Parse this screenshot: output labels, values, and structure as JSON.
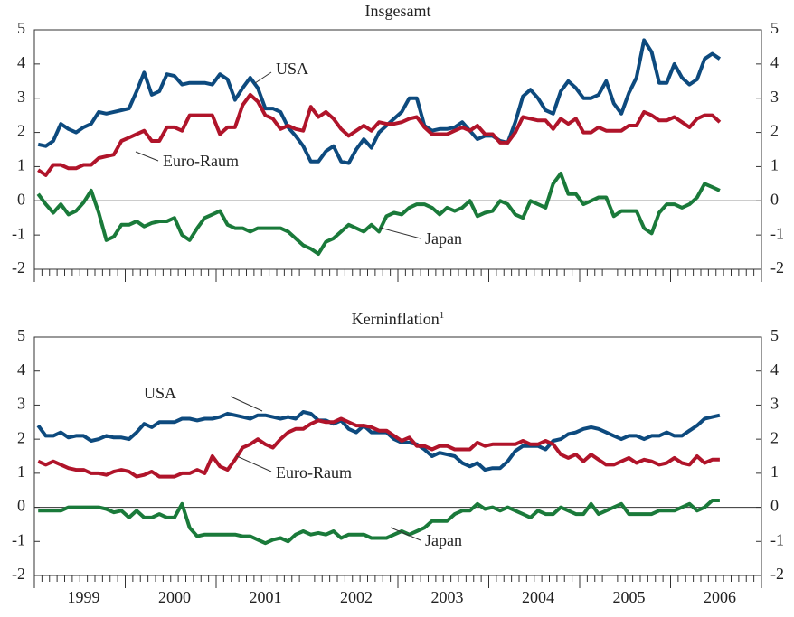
{
  "chart_data": [
    {
      "type": "line",
      "title": "Insgesamt",
      "categories": [
        null,
        null,
        null,
        null,
        null,
        null,
        "1999",
        null,
        null,
        null,
        null,
        null,
        null,
        null,
        null,
        null,
        null,
        null,
        "2000",
        null,
        null,
        null,
        null,
        null,
        null,
        null,
        null,
        null,
        null,
        null,
        "2001",
        null,
        null,
        null,
        null,
        null,
        null,
        null,
        null,
        null,
        null,
        null,
        "2002",
        null,
        null,
        null,
        null,
        null,
        null,
        null,
        null,
        null,
        null,
        null,
        "2003",
        null,
        null,
        null,
        null,
        null,
        null,
        null,
        null,
        null,
        null,
        null,
        "2004",
        null,
        null,
        null,
        null,
        null,
        null,
        null,
        null,
        null,
        null,
        null,
        "2005",
        null,
        null,
        null,
        null,
        null,
        null,
        null,
        null,
        null,
        null,
        null,
        "2006",
        null,
        null,
        null,
        null,
        null
      ],
      "ylim": [
        -2,
        5
      ],
      "yticks": [
        -2,
        -1,
        0,
        1,
        2,
        3,
        4,
        5
      ],
      "series": [
        {
          "name": "USA",
          "color": "#0d4a7e",
          "values": [
            1.65,
            1.6,
            1.75,
            2.25,
            2.1,
            2.0,
            2.15,
            2.25,
            2.6,
            2.55,
            2.6,
            2.65,
            2.7,
            3.2,
            3.75,
            3.1,
            3.2,
            3.7,
            3.65,
            3.4,
            3.45,
            3.45,
            3.45,
            3.4,
            3.7,
            3.55,
            2.95,
            3.3,
            3.6,
            3.3,
            2.7,
            2.7,
            2.6,
            2.15,
            1.9,
            1.6,
            1.15,
            1.15,
            1.45,
            1.6,
            1.15,
            1.1,
            1.5,
            1.8,
            1.55,
            2.0,
            2.2,
            2.4,
            2.6,
            3.0,
            3.0,
            2.2,
            2.05,
            2.1,
            2.1,
            2.15,
            2.3,
            2.05,
            1.8,
            1.9,
            1.9,
            1.75,
            1.7,
            2.3,
            3.05,
            3.25,
            3.0,
            2.65,
            2.55,
            3.2,
            3.5,
            3.3,
            3.0,
            3.0,
            3.1,
            3.5,
            2.85,
            2.55,
            3.15,
            3.6,
            4.7,
            4.35,
            3.45,
            3.45,
            4.0,
            3.6,
            3.4,
            3.55,
            4.15,
            4.3,
            4.15,
            null,
            null,
            null,
            null,
            null
          ]
        },
        {
          "name": "Euro-Raum",
          "color": "#b0142a",
          "values": [
            0.9,
            0.75,
            1.05,
            1.05,
            0.95,
            0.95,
            1.05,
            1.05,
            1.25,
            1.3,
            1.35,
            1.75,
            1.85,
            1.95,
            2.05,
            1.75,
            1.75,
            2.15,
            2.15,
            2.05,
            2.5,
            2.5,
            2.5,
            2.5,
            1.95,
            2.15,
            2.15,
            2.8,
            3.1,
            2.9,
            2.5,
            2.4,
            2.1,
            2.2,
            2.1,
            2.05,
            2.75,
            2.45,
            2.6,
            2.4,
            2.1,
            1.9,
            2.05,
            2.2,
            2.05,
            2.3,
            2.25,
            2.25,
            2.3,
            2.4,
            2.45,
            2.15,
            1.95,
            1.95,
            1.95,
            2.05,
            2.15,
            2.05,
            2.2,
            1.95,
            1.95,
            1.7,
            1.7,
            2.0,
            2.45,
            2.4,
            2.35,
            2.35,
            2.1,
            2.4,
            2.25,
            2.4,
            2.0,
            2.0,
            2.15,
            2.05,
            2.05,
            2.05,
            2.2,
            2.2,
            2.6,
            2.5,
            2.35,
            2.35,
            2.45,
            2.3,
            2.15,
            2.4,
            2.5,
            2.5,
            2.3,
            null,
            null,
            null,
            null,
            null
          ]
        },
        {
          "name": "Japan",
          "color": "#1a7a3a",
          "values": [
            0.2,
            -0.1,
            -0.35,
            -0.1,
            -0.4,
            -0.3,
            -0.05,
            0.3,
            -0.35,
            -1.15,
            -1.05,
            -0.7,
            -0.7,
            -0.6,
            -0.75,
            -0.65,
            -0.6,
            -0.6,
            -0.5,
            -1.0,
            -1.15,
            -0.8,
            -0.5,
            -0.4,
            -0.3,
            -0.7,
            -0.8,
            -0.8,
            -0.9,
            -0.8,
            -0.8,
            -0.8,
            -0.8,
            -0.9,
            -1.1,
            -1.3,
            -1.4,
            -1.55,
            -1.2,
            -1.1,
            -0.9,
            -0.7,
            -0.8,
            -0.9,
            -0.7,
            -0.9,
            -0.45,
            -0.35,
            -0.4,
            -0.2,
            -0.1,
            -0.1,
            -0.2,
            -0.4,
            -0.2,
            -0.3,
            -0.2,
            0.0,
            -0.45,
            -0.35,
            -0.3,
            0.0,
            -0.1,
            -0.4,
            -0.5,
            0.0,
            -0.1,
            -0.2,
            0.5,
            0.8,
            0.2,
            0.2,
            -0.1,
            0.0,
            0.1,
            0.1,
            -0.45,
            -0.3,
            -0.3,
            -0.3,
            -0.8,
            -0.95,
            -0.35,
            -0.1,
            -0.1,
            -0.2,
            -0.1,
            0.1,
            0.5,
            0.4,
            0.3,
            null,
            null,
            null,
            null,
            null
          ]
        }
      ]
    },
    {
      "type": "line",
      "title": "Kerninflation",
      "title_note": "1",
      "categories": [
        null,
        null,
        null,
        null,
        null,
        null,
        "1999",
        null,
        null,
        null,
        null,
        null,
        null,
        null,
        null,
        null,
        null,
        null,
        "2000",
        null,
        null,
        null,
        null,
        null,
        null,
        null,
        null,
        null,
        null,
        null,
        "2001",
        null,
        null,
        null,
        null,
        null,
        null,
        null,
        null,
        null,
        null,
        null,
        "2002",
        null,
        null,
        null,
        null,
        null,
        null,
        null,
        null,
        null,
        null,
        null,
        "2003",
        null,
        null,
        null,
        null,
        null,
        null,
        null,
        null,
        null,
        null,
        null,
        "2004",
        null,
        null,
        null,
        null,
        null,
        null,
        null,
        null,
        null,
        null,
        null,
        "2005",
        null,
        null,
        null,
        null,
        null,
        null,
        null,
        null,
        null,
        null,
        null,
        "2006",
        null,
        null,
        null,
        null,
        null
      ],
      "ylim": [
        -2,
        5
      ],
      "yticks": [
        -2,
        -1,
        0,
        1,
        2,
        3,
        4,
        5
      ],
      "series": [
        {
          "name": "USA",
          "color": "#0d4a7e",
          "values": [
            2.4,
            2.1,
            2.1,
            2.2,
            2.05,
            2.1,
            2.1,
            1.95,
            2.0,
            2.1,
            2.05,
            2.05,
            2.0,
            2.2,
            2.45,
            2.35,
            2.5,
            2.5,
            2.5,
            2.6,
            2.6,
            2.55,
            2.6,
            2.6,
            2.65,
            2.75,
            2.7,
            2.65,
            2.6,
            2.7,
            2.7,
            2.65,
            2.6,
            2.65,
            2.6,
            2.8,
            2.75,
            2.55,
            2.55,
            2.45,
            2.55,
            2.3,
            2.2,
            2.4,
            2.2,
            2.2,
            2.2,
            2.0,
            1.9,
            1.9,
            1.85,
            1.7,
            1.5,
            1.6,
            1.55,
            1.5,
            1.3,
            1.2,
            1.3,
            1.1,
            1.15,
            1.15,
            1.35,
            1.65,
            1.8,
            1.8,
            1.8,
            1.7,
            1.95,
            2.0,
            2.15,
            2.2,
            2.3,
            2.35,
            2.3,
            2.2,
            2.1,
            2.0,
            2.1,
            2.1,
            2.0,
            2.1,
            2.1,
            2.2,
            2.1,
            2.1,
            2.25,
            2.4,
            2.6,
            2.65,
            2.7,
            null,
            null,
            null,
            null,
            null
          ]
        },
        {
          "name": "Euro-Raum",
          "color": "#b0142a",
          "values": [
            1.35,
            1.25,
            1.35,
            1.25,
            1.15,
            1.1,
            1.1,
            1.0,
            1.0,
            0.95,
            1.05,
            1.1,
            1.05,
            0.9,
            0.95,
            1.05,
            0.9,
            0.9,
            0.9,
            1.0,
            1.0,
            1.1,
            1.0,
            1.5,
            1.2,
            1.1,
            1.4,
            1.75,
            1.85,
            2.0,
            1.85,
            1.75,
            2.0,
            2.2,
            2.3,
            2.3,
            2.45,
            2.55,
            2.5,
            2.5,
            2.6,
            2.5,
            2.4,
            2.4,
            2.35,
            2.25,
            2.25,
            2.1,
            1.95,
            2.05,
            1.8,
            1.8,
            1.7,
            1.8,
            1.8,
            1.7,
            1.7,
            1.7,
            1.9,
            1.8,
            1.85,
            1.85,
            1.85,
            1.85,
            1.95,
            1.85,
            1.85,
            1.95,
            1.85,
            1.55,
            1.45,
            1.55,
            1.35,
            1.55,
            1.4,
            1.25,
            1.25,
            1.35,
            1.45,
            1.3,
            1.4,
            1.35,
            1.25,
            1.3,
            1.45,
            1.3,
            1.25,
            1.5,
            1.3,
            1.4,
            1.4,
            null,
            null,
            null,
            null,
            null
          ]
        },
        {
          "name": "Japan",
          "color": "#1a7a3a",
          "values": [
            -0.1,
            -0.1,
            -0.1,
            -0.1,
            0.0,
            0.0,
            0.0,
            0.0,
            0.0,
            -0.05,
            -0.15,
            -0.1,
            -0.3,
            -0.1,
            -0.3,
            -0.3,
            -0.2,
            -0.3,
            -0.3,
            0.1,
            -0.6,
            -0.85,
            -0.8,
            -0.8,
            -0.8,
            -0.8,
            -0.8,
            -0.85,
            -0.85,
            -0.95,
            -1.05,
            -0.95,
            -0.9,
            -1.0,
            -0.8,
            -0.7,
            -0.8,
            -0.75,
            -0.8,
            -0.7,
            -0.9,
            -0.8,
            -0.8,
            -0.8,
            -0.9,
            -0.9,
            -0.9,
            -0.8,
            -0.7,
            -0.8,
            -0.7,
            -0.6,
            -0.4,
            -0.4,
            -0.4,
            -0.2,
            -0.1,
            -0.1,
            0.1,
            -0.05,
            0.0,
            -0.1,
            0.0,
            -0.1,
            -0.2,
            -0.3,
            -0.1,
            -0.2,
            -0.2,
            0.0,
            -0.1,
            -0.2,
            -0.2,
            0.1,
            -0.2,
            -0.1,
            0.0,
            0.1,
            -0.2,
            -0.2,
            -0.2,
            -0.2,
            -0.1,
            -0.1,
            -0.1,
            0.0,
            0.1,
            -0.1,
            0.0,
            0.2,
            0.2,
            null,
            null,
            null,
            null,
            null
          ]
        }
      ]
    }
  ]
}
